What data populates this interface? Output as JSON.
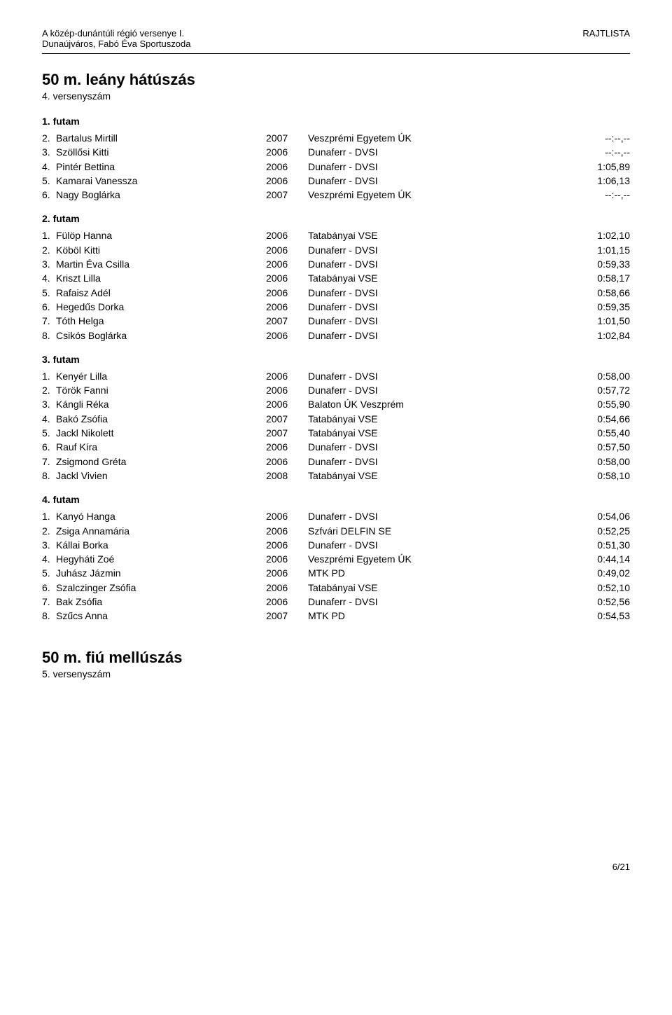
{
  "header": {
    "left_line1": "A közép-dunántúli régió versenye I.",
    "left_line2": "Dunaújváros, Fabó Éva Sportuszoda",
    "right": "RAJTLISTA"
  },
  "event1": {
    "title": "50 m. leány hátúszás",
    "sub": "4. versenyszám",
    "heats": [
      {
        "label": "1. futam",
        "rows": [
          {
            "rank": "2.",
            "name": "Bartalus Mirtill",
            "year": "2007",
            "club": "Veszprémi Egyetem ÚK",
            "time": "--:--,--"
          },
          {
            "rank": "3.",
            "name": "Szöllősi Kitti",
            "year": "2006",
            "club": "Dunaferr - DVSI",
            "time": "--:--,--"
          },
          {
            "rank": "4.",
            "name": "Pintér Bettina",
            "year": "2006",
            "club": "Dunaferr - DVSI",
            "time": "1:05,89"
          },
          {
            "rank": "5.",
            "name": "Kamarai Vanessza",
            "year": "2006",
            "club": "Dunaferr - DVSI",
            "time": "1:06,13"
          },
          {
            "rank": "6.",
            "name": "Nagy Boglárka",
            "year": "2007",
            "club": "Veszprémi Egyetem ÚK",
            "time": "--:--,--"
          }
        ]
      },
      {
        "label": "2. futam",
        "rows": [
          {
            "rank": "1.",
            "name": "Fülöp Hanna",
            "year": "2006",
            "club": "Tatabányai VSE",
            "time": "1:02,10"
          },
          {
            "rank": "2.",
            "name": "Köböl Kitti",
            "year": "2006",
            "club": "Dunaferr - DVSI",
            "time": "1:01,15"
          },
          {
            "rank": "3.",
            "name": "Martin Éva Csilla",
            "year": "2006",
            "club": "Dunaferr - DVSI",
            "time": "0:59,33"
          },
          {
            "rank": "4.",
            "name": "Kriszt Lilla",
            "year": "2006",
            "club": "Tatabányai VSE",
            "time": "0:58,17"
          },
          {
            "rank": "5.",
            "name": "Rafaisz Adél",
            "year": "2006",
            "club": "Dunaferr - DVSI",
            "time": "0:58,66"
          },
          {
            "rank": "6.",
            "name": "Hegedűs Dorka",
            "year": "2006",
            "club": "Dunaferr - DVSI",
            "time": "0:59,35"
          },
          {
            "rank": "7.",
            "name": "Tóth Helga",
            "year": "2007",
            "club": "Dunaferr - DVSI",
            "time": "1:01,50"
          },
          {
            "rank": "8.",
            "name": "Csikós Boglárka",
            "year": "2006",
            "club": "Dunaferr - DVSI",
            "time": "1:02,84"
          }
        ]
      },
      {
        "label": "3. futam",
        "rows": [
          {
            "rank": "1.",
            "name": "Kenyér Lilla",
            "year": "2006",
            "club": "Dunaferr - DVSI",
            "time": "0:58,00"
          },
          {
            "rank": "2.",
            "name": "Török Fanni",
            "year": "2006",
            "club": "Dunaferr - DVSI",
            "time": "0:57,72"
          },
          {
            "rank": "3.",
            "name": "Kángli Réka",
            "year": "2006",
            "club": "Balaton ÚK Veszprém",
            "time": "0:55,90"
          },
          {
            "rank": "4.",
            "name": "Bakó Zsófia",
            "year": "2007",
            "club": "Tatabányai VSE",
            "time": "0:54,66"
          },
          {
            "rank": "5.",
            "name": "Jackl Nikolett",
            "year": "2007",
            "club": "Tatabányai VSE",
            "time": "0:55,40"
          },
          {
            "rank": "6.",
            "name": "Rauf Kíra",
            "year": "2006",
            "club": "Dunaferr - DVSI",
            "time": "0:57,50"
          },
          {
            "rank": "7.",
            "name": "Zsigmond Gréta",
            "year": "2006",
            "club": "Dunaferr - DVSI",
            "time": "0:58,00"
          },
          {
            "rank": "8.",
            "name": "Jackl Vivien",
            "year": "2008",
            "club": "Tatabányai VSE",
            "time": "0:58,10"
          }
        ]
      },
      {
        "label": "4. futam",
        "rows": [
          {
            "rank": "1.",
            "name": "Kanyó Hanga",
            "year": "2006",
            "club": "Dunaferr - DVSI",
            "time": "0:54,06"
          },
          {
            "rank": "2.",
            "name": "Zsiga Annamária",
            "year": "2006",
            "club": "Szfvári DELFIN SE",
            "time": "0:52,25"
          },
          {
            "rank": "3.",
            "name": "Kállai Borka",
            "year": "2006",
            "club": "Dunaferr - DVSI",
            "time": "0:51,30"
          },
          {
            "rank": "4.",
            "name": "Hegyháti Zoé",
            "year": "2006",
            "club": "Veszprémi Egyetem ÚK",
            "time": "0:44,14"
          },
          {
            "rank": "5.",
            "name": "Juhász Jázmin",
            "year": "2006",
            "club": "MTK PD",
            "time": "0:49,02"
          },
          {
            "rank": "6.",
            "name": "Szalczinger Zsófia",
            "year": "2006",
            "club": "Tatabányai VSE",
            "time": "0:52,10"
          },
          {
            "rank": "7.",
            "name": "Bak Zsófia",
            "year": "2006",
            "club": "Dunaferr - DVSI",
            "time": "0:52,56"
          },
          {
            "rank": "8.",
            "name": "Szűcs Anna",
            "year": "2007",
            "club": "MTK PD",
            "time": "0:54,53"
          }
        ]
      }
    ]
  },
  "event2": {
    "title": "50 m. fiú mellúszás",
    "sub": "5. versenyszám"
  },
  "page_num": "6/21"
}
